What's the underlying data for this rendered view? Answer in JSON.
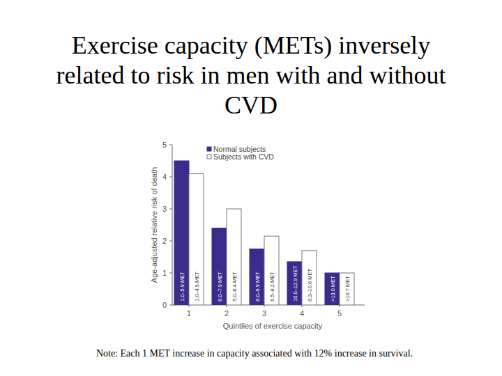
{
  "chart_data": {
    "type": "bar",
    "title": "Exercise capacity (METs) inversely related to risk in men with and without CVD",
    "note": "Note: Each 1 MET increase in capacity associated with 12% increase in survival.",
    "x_label": "Quintiles of exercise capacity",
    "y_label": "Age-adjusted relative risk of death",
    "categories": [
      "1",
      "2",
      "3",
      "4",
      "5"
    ],
    "ylim": [
      0,
      5
    ],
    "yticks": [
      0,
      1,
      2,
      3,
      4,
      5
    ],
    "legend": "upper left",
    "series": [
      {
        "name": "Normal subjects",
        "color": "#3b2c8c",
        "values": [
          4.5,
          2.4,
          1.75,
          1.35,
          1.0
        ],
        "bar_labels": [
          "1.0–5.9 MET",
          "6.0–7.9 MET",
          "8.0–9.9 MET",
          "10.0–12.9 MET",
          ">13.0 MET"
        ]
      },
      {
        "name": "Subjects with CVD",
        "color": "#ffffff",
        "values": [
          4.1,
          3.0,
          2.15,
          1.7,
          1.0
        ],
        "bar_labels": [
          "1.0–4.9 MET",
          "5.0–6.4 MET",
          "6.5–8.2 MET",
          "8.3–10.6 MET",
          ">10.7 MET"
        ]
      }
    ]
  }
}
